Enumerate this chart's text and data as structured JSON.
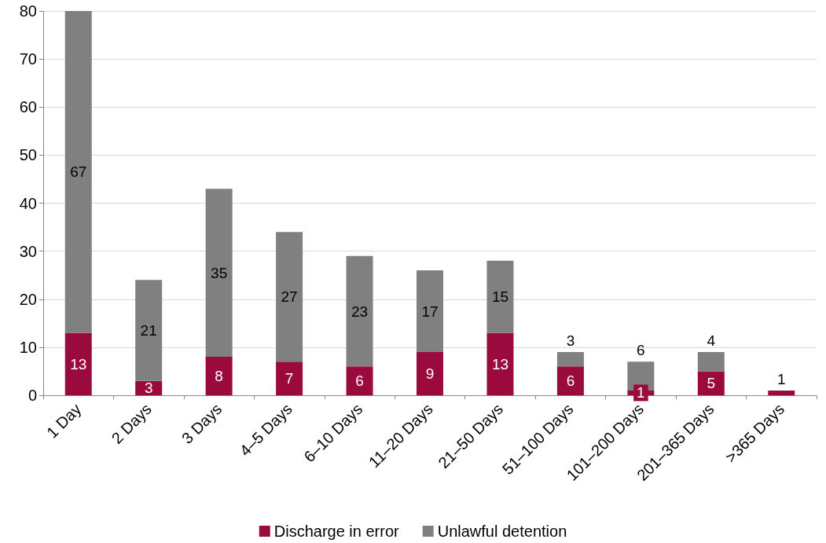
{
  "chart_data": {
    "type": "bar",
    "stacked": true,
    "categories": [
      "1 Day",
      "2 Days",
      "3 Days",
      "4–5 Days",
      "6–10 Days",
      "11–20 Days",
      "21–50 Days",
      "51–100 Days",
      "101–200 Days",
      "201–365 Days",
      ">365 Days"
    ],
    "series": [
      {
        "name": "Discharge in error",
        "color": "#9b0a3c",
        "values": [
          13,
          3,
          8,
          7,
          6,
          9,
          13,
          6,
          1,
          5,
          1
        ]
      },
      {
        "name": "Unlawful detention",
        "color": "#808080",
        "values": [
          67,
          21,
          35,
          27,
          23,
          17,
          15,
          3,
          6,
          4,
          null
        ]
      }
    ],
    "ylim": [
      0,
      80
    ],
    "yticks": [
      0,
      10,
      20,
      30,
      40,
      50,
      60,
      70,
      80
    ],
    "grid": "y",
    "legend": "bottom",
    "data_labels": true
  }
}
